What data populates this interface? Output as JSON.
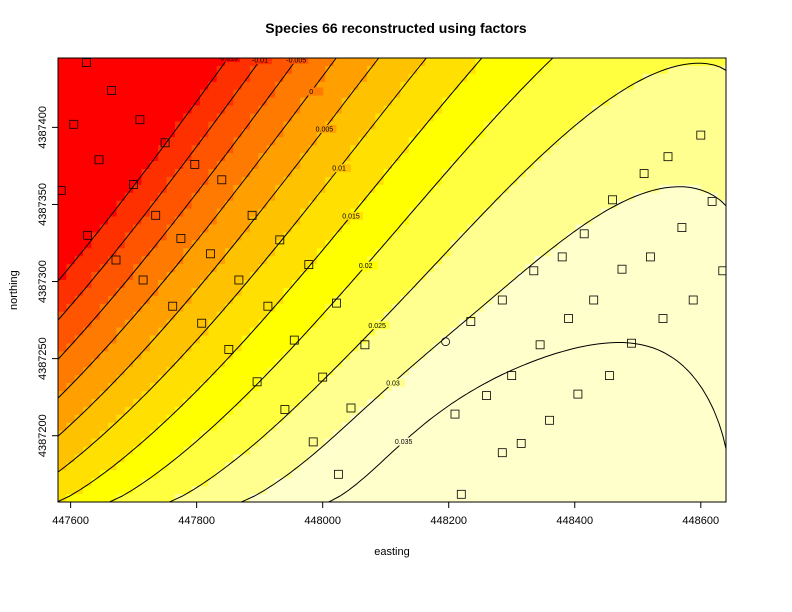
{
  "chart_data": {
    "type": "heatmap",
    "title": "Species 66 reconstructed using factors",
    "xlabel": "easting",
    "ylabel": "northing",
    "xlim": [
      447580,
      448640
    ],
    "ylim": [
      4387157,
      4387445
    ],
    "x_ticks": [
      447600,
      447800,
      448000,
      448200,
      448400,
      448600
    ],
    "y_ticks": [
      4387200,
      4387250,
      4387300,
      4387350,
      4387400
    ],
    "contour_levels": [
      -0.015,
      -0.01,
      -0.005,
      0,
      0.005,
      0.01,
      0.015,
      0.02,
      0.025,
      0.03,
      0.035
    ],
    "contour_labels": [
      "-0.015",
      "-0.01",
      "-0.005",
      "0",
      "0.005",
      "0.01",
      "0.015",
      "0.02",
      "0.025",
      "0.03",
      "0.035"
    ],
    "colors": [
      "#ff0000",
      "#ff3000",
      "#ff5500",
      "#ff7a00",
      "#ffa000",
      "#ffc200",
      "#ffe000",
      "#ffff00",
      "#ffff40",
      "#ffff90",
      "#ffffcc"
    ],
    "field": {
      "description_surface": "peak near easting 448300 northing 4387170, low at top-left",
      "peak": [
        448300,
        4387170
      ]
    },
    "points": [
      {
        "x": 447625,
        "y": 4387442,
        "marker": "square"
      },
      {
        "x": 447665,
        "y": 4387424,
        "marker": "square"
      },
      {
        "x": 447710,
        "y": 4387405,
        "marker": "square"
      },
      {
        "x": 447605,
        "y": 4387402,
        "marker": "square"
      },
      {
        "x": 447750,
        "y": 4387390,
        "marker": "square"
      },
      {
        "x": 447645,
        "y": 4387379,
        "marker": "square"
      },
      {
        "x": 447797,
        "y": 4387376,
        "marker": "square"
      },
      {
        "x": 447840,
        "y": 4387366,
        "marker": "square"
      },
      {
        "x": 447700,
        "y": 4387363,
        "marker": "square"
      },
      {
        "x": 447585,
        "y": 4387359,
        "marker": "square"
      },
      {
        "x": 447735,
        "y": 4387343,
        "marker": "square"
      },
      {
        "x": 447888,
        "y": 4387343,
        "marker": "square"
      },
      {
        "x": 447627,
        "y": 4387330,
        "marker": "square"
      },
      {
        "x": 447775,
        "y": 4387328,
        "marker": "square"
      },
      {
        "x": 447932,
        "y": 4387327,
        "marker": "square"
      },
      {
        "x": 447822,
        "y": 4387318,
        "marker": "square"
      },
      {
        "x": 447672,
        "y": 4387314,
        "marker": "square"
      },
      {
        "x": 447978,
        "y": 4387311,
        "marker": "square"
      },
      {
        "x": 447715,
        "y": 4387301,
        "marker": "square"
      },
      {
        "x": 447867,
        "y": 4387301,
        "marker": "square"
      },
      {
        "x": 448022,
        "y": 4387286,
        "marker": "square"
      },
      {
        "x": 447913,
        "y": 4387284,
        "marker": "square"
      },
      {
        "x": 447762,
        "y": 4387284,
        "marker": "square"
      },
      {
        "x": 447808,
        "y": 4387273,
        "marker": "square"
      },
      {
        "x": 447955,
        "y": 4387262,
        "marker": "square"
      },
      {
        "x": 448067,
        "y": 4387259,
        "marker": "square"
      },
      {
        "x": 447851,
        "y": 4387256,
        "marker": "square"
      },
      {
        "x": 448000,
        "y": 4387238,
        "marker": "square"
      },
      {
        "x": 447896,
        "y": 4387235,
        "marker": "square"
      },
      {
        "x": 448045,
        "y": 4387218,
        "marker": "square"
      },
      {
        "x": 447940,
        "y": 4387217,
        "marker": "square"
      },
      {
        "x": 447985,
        "y": 4387196,
        "marker": "square"
      },
      {
        "x": 448025,
        "y": 4387175,
        "marker": "square"
      },
      {
        "x": 448195,
        "y": 4387261,
        "marker": "circle"
      },
      {
        "x": 448235,
        "y": 4387274,
        "marker": "square"
      },
      {
        "x": 448285,
        "y": 4387288,
        "marker": "square"
      },
      {
        "x": 448335,
        "y": 4387307,
        "marker": "square"
      },
      {
        "x": 448345,
        "y": 4387259,
        "marker": "square"
      },
      {
        "x": 448300,
        "y": 4387239,
        "marker": "square"
      },
      {
        "x": 448260,
        "y": 4387226,
        "marker": "square"
      },
      {
        "x": 448210,
        "y": 4387214,
        "marker": "square"
      },
      {
        "x": 448360,
        "y": 4387210,
        "marker": "square"
      },
      {
        "x": 448315,
        "y": 4387195,
        "marker": "square"
      },
      {
        "x": 448285,
        "y": 4387189,
        "marker": "square"
      },
      {
        "x": 448220,
        "y": 4387162,
        "marker": "square"
      },
      {
        "x": 448390,
        "y": 4387276,
        "marker": "square"
      },
      {
        "x": 448405,
        "y": 4387227,
        "marker": "square"
      },
      {
        "x": 448455,
        "y": 4387239,
        "marker": "square"
      },
      {
        "x": 448490,
        "y": 4387260,
        "marker": "square"
      },
      {
        "x": 448430,
        "y": 4387288,
        "marker": "square"
      },
      {
        "x": 448475,
        "y": 4387308,
        "marker": "square"
      },
      {
        "x": 448380,
        "y": 4387316,
        "marker": "square"
      },
      {
        "x": 448520,
        "y": 4387316,
        "marker": "square"
      },
      {
        "x": 448415,
        "y": 4387331,
        "marker": "square"
      },
      {
        "x": 448460,
        "y": 4387353,
        "marker": "square"
      },
      {
        "x": 448510,
        "y": 4387370,
        "marker": "square"
      },
      {
        "x": 448548,
        "y": 4387381,
        "marker": "square"
      },
      {
        "x": 448540,
        "y": 4387276,
        "marker": "square"
      },
      {
        "x": 448570,
        "y": 4387335,
        "marker": "square"
      },
      {
        "x": 448588,
        "y": 4387288,
        "marker": "square"
      },
      {
        "x": 448600,
        "y": 4387395,
        "marker": "square"
      },
      {
        "x": 448618,
        "y": 4387352,
        "marker": "square"
      },
      {
        "x": 448635,
        "y": 4387307,
        "marker": "square"
      }
    ]
  }
}
